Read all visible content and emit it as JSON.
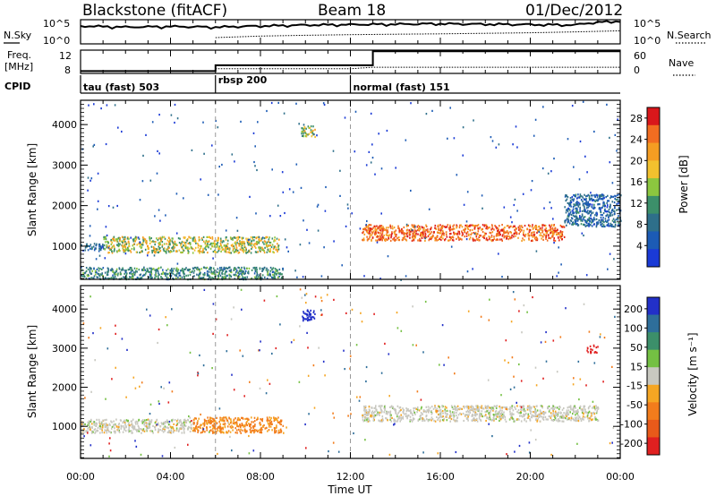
{
  "header": {
    "station": "Blackstone (fitACF)",
    "beam": "Beam 18",
    "date": "01/Dec/2012"
  },
  "noise_panel": {
    "left_label": "N.Sky",
    "right_label": "N.Search",
    "left_ticks": [
      "10^5",
      "10^0"
    ],
    "right_ticks": [
      "10^5",
      "10^0"
    ]
  },
  "freq_panel": {
    "left_label_line1": "Freq.",
    "left_label_line2": "[MHz]",
    "left_ticks": [
      "12",
      "8"
    ],
    "right_label": "Nave",
    "right_ticks": [
      "60",
      "0"
    ]
  },
  "cpid_panel": {
    "label": "CPID",
    "modes": [
      {
        "name": "tau (fast) 503",
        "start_hour": 0
      },
      {
        "name": "rbsp 200",
        "start_hour": 6
      },
      {
        "name": "normal (fast) 151",
        "start_hour": 12
      }
    ]
  },
  "power_panel": {
    "ylabel": "Slant Range [km]",
    "colorbar_label": "Power [dB]",
    "colorbar_ticks": [
      "4",
      "8",
      "12",
      "16",
      "20",
      "24",
      "28"
    ]
  },
  "velocity_panel": {
    "ylabel": "Slant Range [km]",
    "colorbar_label": "Velocity [m s⁻¹]",
    "colorbar_ticks": [
      "200",
      "100",
      "50",
      "15",
      "-15",
      "-50",
      "-100",
      "-200"
    ]
  },
  "xaxis": {
    "label": "Time UT",
    "ticks": [
      "00:00",
      "04:00",
      "08:00",
      "12:00",
      "16:00",
      "20:00",
      "00:00"
    ]
  },
  "chart_data": [
    {
      "type": "line",
      "name": "noise",
      "x_range_hours": [
        0,
        24
      ],
      "y_scale": "log",
      "ylim": [
        1,
        100000
      ],
      "series": [
        {
          "x": [
            0,
            2,
            4,
            6,
            8,
            10,
            12,
            14,
            16,
            18,
            20,
            22,
            24
          ],
          "values": [
            5000,
            3000,
            4000,
            3000,
            5000,
            8000,
            10000,
            12000,
            15000,
            12000,
            10000,
            8000,
            50000
          ]
        },
        {
          "x": [
            6,
            8,
            10,
            12,
            14,
            16,
            18,
            20,
            22,
            24
          ],
          "values": [
            20,
            40,
            60,
            80,
            100,
            120,
            150,
            200,
            300,
            500
          ]
        }
      ]
    },
    {
      "type": "line",
      "name": "frequency-nave",
      "x_range_hours": [
        0,
        24
      ],
      "ylim_left": [
        8,
        12
      ],
      "ylim_right": [
        0,
        60
      ],
      "series": [
        {
          "x": [
            0,
            6,
            6,
            13,
            13,
            24
          ],
          "values": [
            8.4,
            8.4,
            9.4,
            9.4,
            11.8,
            11.8
          ]
        },
        {
          "x": [
            6,
            12,
            13,
            24
          ],
          "values": [
            12,
            12,
            16,
            16
          ]
        }
      ]
    },
    {
      "type": "heatmap",
      "name": "power",
      "x_range_hours": [
        0,
        24
      ],
      "ylim": [
        180,
        4600
      ],
      "yticks": [
        1000,
        2000,
        3000,
        4000
      ],
      "clim": [
        0,
        30
      ],
      "features": [
        {
          "hours": [
            0,
            1
          ],
          "range_km": [
            900,
            1100
          ],
          "value": 8
        },
        {
          "hours": [
            1,
            8.8
          ],
          "range_km": [
            850,
            1250
          ],
          "value": 18
        },
        {
          "hours": [
            0,
            9
          ],
          "range_km": [
            200,
            500
          ],
          "value": 12
        },
        {
          "hours": [
            9.8,
            10.4
          ],
          "range_km": [
            3700,
            4000
          ],
          "value": 16
        },
        {
          "hours": [
            12.5,
            21.5
          ],
          "range_km": [
            1150,
            1550
          ],
          "value": 26
        },
        {
          "hours": [
            21.5,
            24
          ],
          "range_km": [
            1500,
            2300
          ],
          "value": 8
        }
      ]
    },
    {
      "type": "heatmap",
      "name": "velocity",
      "x_range_hours": [
        0,
        24
      ],
      "ylim": [
        180,
        4600
      ],
      "yticks": [
        1000,
        2000,
        3000,
        4000
      ],
      "clim": [
        -200,
        200
      ],
      "features": [
        {
          "hours": [
            0,
            5
          ],
          "range_km": [
            850,
            1200
          ],
          "value": 0
        },
        {
          "hours": [
            5,
            9
          ],
          "range_km": [
            850,
            1250
          ],
          "value": -60
        },
        {
          "hours": [
            9.8,
            10.4
          ],
          "range_km": [
            3700,
            4000
          ],
          "value": 150
        },
        {
          "hours": [
            12.5,
            23
          ],
          "range_km": [
            1150,
            1550
          ],
          "value": 0
        },
        {
          "hours": [
            22.5,
            23
          ],
          "range_km": [
            2900,
            3100
          ],
          "value": -200
        }
      ]
    }
  ]
}
